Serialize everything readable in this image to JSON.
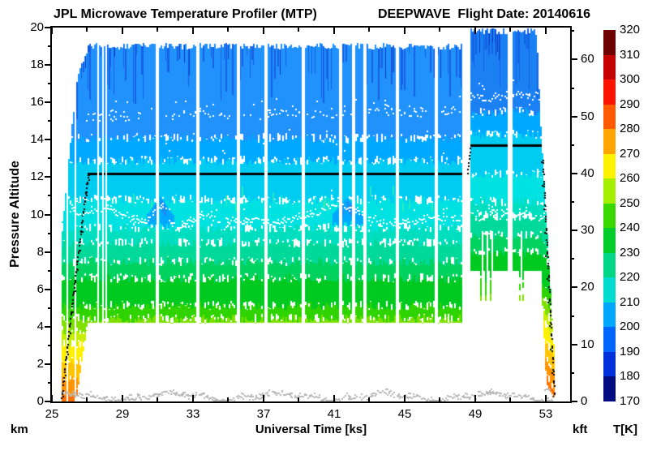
{
  "header": {
    "title_left": "JPL Microwave Temperature Profiler (MTP)",
    "title_right": "DEEPWAVE  Flight Date: 20140616"
  },
  "axes": {
    "x": {
      "label": "Universal Time [ks]",
      "min": 25,
      "max": 54.4,
      "major_ticks": [
        25,
        29,
        33,
        37,
        41,
        45,
        49,
        53
      ],
      "minor_ticks": [
        27,
        31,
        35,
        39,
        43,
        47,
        51
      ]
    },
    "y_left": {
      "label": "Pressure Altitude",
      "unit": "km",
      "min": 0,
      "max": 20,
      "major_ticks": [
        0,
        2,
        4,
        6,
        8,
        10,
        12,
        14,
        16,
        18,
        20
      ],
      "minor_ticks": [
        1,
        3,
        5,
        7,
        9,
        11,
        13,
        15,
        17,
        19
      ]
    },
    "y_right": {
      "unit": "kft",
      "min": 0,
      "max": 65.6,
      "major_ticks": [
        0,
        10,
        20,
        30,
        40,
        50,
        60
      ],
      "minor_ticks": [
        5,
        15,
        25,
        35,
        45,
        55,
        65
      ]
    }
  },
  "colorbar": {
    "label": "T[K]",
    "tick_labels": [
      320,
      310,
      300,
      290,
      280,
      270,
      260,
      250,
      240,
      230,
      220,
      210,
      200,
      190,
      180,
      170
    ],
    "segments_top_down": [
      "#6e0000",
      "#c40000",
      "#fb1400",
      "#ff5a00",
      "#ffa400",
      "#fdf200",
      "#a6ee00",
      "#38d800",
      "#00cc2a",
      "#00d685",
      "#00dcd0",
      "#00a6ff",
      "#0064ff",
      "#0030dc",
      "#000c80"
    ],
    "bottom_color": "#000000"
  },
  "chart_data": {
    "type": "heatmap",
    "x_unit": "ks",
    "x_range": [
      25,
      54.4
    ],
    "altitude_range_km": [
      0,
      20
    ],
    "temperature_range_K": [
      170,
      320
    ],
    "temperature_bands": [
      {
        "alt": [
          0.0,
          0.5
        ],
        "temp_K": 287,
        "color": "#ff7000"
      },
      {
        "alt": [
          0.5,
          1.3
        ],
        "temp_K": 281,
        "color": "#ff9400"
      },
      {
        "alt": [
          1.3,
          2.2
        ],
        "temp_K": 275,
        "color": "#ffc400"
      },
      {
        "alt": [
          2.2,
          3.1
        ],
        "temp_K": 268,
        "color": "#fff000"
      },
      {
        "alt": [
          3.1,
          3.8
        ],
        "temp_K": 262,
        "color": "#c6ee00"
      },
      {
        "alt": [
          3.8,
          4.45
        ],
        "temp_K": 257,
        "color": "#7fdf00"
      },
      {
        "alt": [
          4.45,
          5.15
        ],
        "temp_K": 252,
        "color": "#2fd400"
      },
      {
        "alt": [
          5.15,
          6.6
        ],
        "temp_K": 248,
        "color": "#00c920"
      },
      {
        "alt": [
          6.6,
          7.5
        ],
        "temp_K": 243,
        "color": "#00d25f"
      },
      {
        "alt": [
          7.5,
          8.5
        ],
        "temp_K": 239,
        "color": "#00d999"
      },
      {
        "alt": [
          8.5,
          9.3
        ],
        "temp_K": 234,
        "color": "#00dec0"
      },
      {
        "alt": [
          9.3,
          10.8
        ],
        "temp_K": 229,
        "color": "#00e1e1"
      },
      {
        "alt": [
          10.8,
          12.9
        ],
        "temp_K": 223,
        "color": "#00ccf2"
      },
      {
        "alt": [
          12.9,
          14.1
        ],
        "temp_K": 218,
        "color": "#00a8ff"
      },
      {
        "alt": [
          14.1,
          20.5
        ],
        "temp_K": 212,
        "color": "#2191fb"
      }
    ],
    "top_band_color2": "#1b80f2",
    "streak_colors": [
      "#1462e6",
      "#0a3cc8"
    ],
    "wave_pockets": [
      {
        "t": [
          30.4,
          31.9
        ],
        "alt": [
          9.4,
          11.0
        ],
        "color": "#00a8ff",
        "core_color": "#1e8cf0"
      },
      {
        "t": [
          40.9,
          42.6
        ],
        "alt": [
          9.5,
          10.9
        ],
        "color": "#00a8ff",
        "core_color": "#1e8cf0"
      }
    ],
    "flight": {
      "takeoff_time_ks": 25.55,
      "ascent_profile": [
        [
          25.52,
          0.2
        ],
        [
          25.75,
          2.2
        ],
        [
          26.0,
          4.3
        ],
        [
          26.3,
          6.7
        ],
        [
          26.6,
          9.0
        ],
        [
          26.85,
          10.9
        ],
        [
          27.05,
          12.2
        ]
      ],
      "cruise1": {
        "t": [
          27.05,
          48.25
        ],
        "alt_km": 12.2
      },
      "climb2": {
        "t": [
          48.55,
          48.73
        ],
        "alt_from_km": 12.2,
        "alt_to_km": 13.7
      },
      "cruise2": {
        "t": [
          48.73,
          52.78
        ],
        "alt_km": 13.7
      },
      "descent": {
        "t": [
          52.78,
          53.5
        ]
      },
      "data_top_km": 19.0,
      "data_top2_km": 19.8,
      "data_bottom_km": 4.2,
      "data_bottom2_km": 7.0,
      "band_shift2_km": 1.4
    },
    "gaps": [
      [
        25.83,
        25.88
      ],
      [
        26.32,
        26.36
      ],
      [
        27.58,
        27.66
      ],
      [
        27.72,
        27.8
      ],
      [
        27.86,
        27.94
      ],
      [
        28.0,
        28.1
      ],
      [
        30.92,
        31.1
      ],
      [
        33.2,
        33.38
      ],
      [
        35.5,
        35.68
      ],
      [
        37.06,
        37.24
      ],
      [
        39.2,
        39.38
      ],
      [
        41.25,
        41.43
      ],
      [
        42.04,
        42.18
      ],
      [
        42.7,
        42.86
      ],
      [
        44.48,
        44.66
      ],
      [
        46.68,
        46.86
      ],
      [
        48.25,
        48.73
      ],
      [
        50.88,
        51.1
      ]
    ],
    "notches_down": [
      49.32,
      49.58,
      49.86,
      51.55,
      51.72
    ],
    "notches_white": [
      49.45,
      49.7,
      49.95,
      51.63
    ],
    "tropopause_lower": {
      "color": "#ffffff",
      "points": [
        [
          26.0,
          10.35
        ],
        [
          26.6,
          10.15
        ],
        [
          27.3,
          10.2
        ],
        [
          28.0,
          10.35
        ],
        [
          28.6,
          10.1
        ],
        [
          29.3,
          9.85
        ],
        [
          30.0,
          9.6
        ],
        [
          30.5,
          9.7
        ],
        [
          30.9,
          10.2
        ],
        [
          31.2,
          10.5
        ],
        [
          31.6,
          9.9
        ],
        [
          31.9,
          9.3
        ],
        [
          32.3,
          9.4
        ],
        [
          33.0,
          9.75
        ],
        [
          33.8,
          9.95
        ],
        [
          34.5,
          9.7
        ],
        [
          35.2,
          9.75
        ],
        [
          36.0,
          9.65
        ],
        [
          36.8,
          9.75
        ],
        [
          37.5,
          9.6
        ],
        [
          38.2,
          9.7
        ],
        [
          39.0,
          9.85
        ],
        [
          39.8,
          9.95
        ],
        [
          40.6,
          10.45
        ],
        [
          41.3,
          10.7
        ],
        [
          41.9,
          10.35
        ],
        [
          42.5,
          10.0
        ],
        [
          43.2,
          9.75
        ],
        [
          43.9,
          9.4
        ],
        [
          44.6,
          9.65
        ],
        [
          45.3,
          9.55
        ],
        [
          46.0,
          9.7
        ],
        [
          46.8,
          9.85
        ],
        [
          47.5,
          9.8
        ],
        [
          48.2,
          9.85
        ],
        [
          49.0,
          9.95
        ],
        [
          49.7,
          10.1
        ],
        [
          50.4,
          10.25
        ],
        [
          51.0,
          9.9
        ],
        [
          51.7,
          10.05
        ],
        [
          52.4,
          9.95
        ],
        [
          53.1,
          10.0
        ],
        [
          53.3,
          10.1
        ]
      ]
    },
    "tropopause_upper": {
      "color": "#ffffff",
      "segments": [
        [
          26.9,
          29.55,
          15.25,
          0.6
        ],
        [
          29.6,
          30.9,
          15.3,
          0.18
        ],
        [
          31.1,
          33.2,
          15.3,
          0.35
        ],
        [
          33.4,
          35.5,
          15.4,
          0.55
        ],
        [
          35.7,
          37.05,
          15.35,
          0.3
        ],
        [
          37.25,
          39.2,
          15.45,
          0.6
        ],
        [
          39.4,
          41.25,
          15.4,
          0.3
        ],
        [
          41.45,
          42.0,
          15.45,
          0.45
        ],
        [
          42.2,
          42.7,
          15.5,
          0.45
        ],
        [
          42.9,
          44.45,
          15.55,
          0.6
        ],
        [
          44.7,
          46.65,
          15.45,
          0.4
        ],
        [
          46.9,
          48.2,
          15.6,
          0.5
        ],
        [
          48.78,
          50.85,
          16.3,
          0.8
        ],
        [
          51.12,
          52.7,
          16.4,
          0.8
        ]
      ]
    },
    "ground_scatter": {
      "color": "#b6b6b6",
      "t_range": [
        25.6,
        53.4
      ],
      "alt_base_km": 0.28
    },
    "flight_track_color": "#000000"
  },
  "corner_labels": {
    "bottom_left_unit": "km",
    "bottom_right_unit": "kft"
  }
}
